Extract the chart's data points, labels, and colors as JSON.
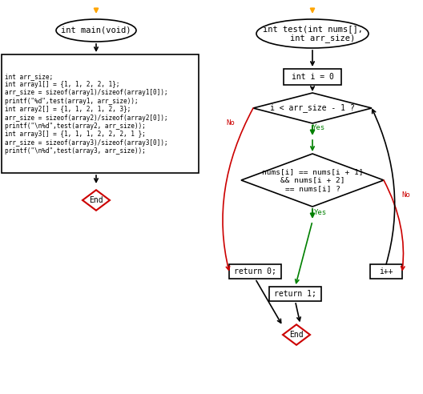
{
  "bg_color": "#ffffff",
  "orange_color": "#FFA500",
  "black_color": "#000000",
  "red_color": "#cc0000",
  "green_color": "#008000",
  "box_fill": "#ffffff",
  "box_edge": "#000000",
  "end_edge": "#cc0000",
  "left_main_label": "int main(void)",
  "left_code_text": "int arr_size;\nint array1[] = {1, 1, 2, 2, 1};\narr_size = sizeof(array1)/sizeof(array1[0]);\nprintf(\"%d\",test(array1, arr_size));\nint array2[] = {1, 1, 2, 1, 2, 3};\narr_size = sizeof(array2)/sizeof(array2[0]);\nprintf(\"\\n%d\",test(array2, arr_size));\nint array3[] = {1, 1, 1, 2, 2, 2, 1 };\narr_size = sizeof(array3)/sizeof(array3[0]);\nprintf(\"\\n%d\",test(array3, arr_size));",
  "right_func_label": "int test(int nums[],\n    int arr_size)",
  "init_label": "int i = 0",
  "diamond1_label": "i < arr_size - 1 ?",
  "diamond2_label": "nums[i] == nums[i + 1]\n&& nums[i + 2]\n== nums[i] ?",
  "ret0_label": "return 0;",
  "ret1_label": "return 1;",
  "end_label": "End",
  "iplus_label": "i++",
  "no_label": "No",
  "yes_label": "Yes"
}
